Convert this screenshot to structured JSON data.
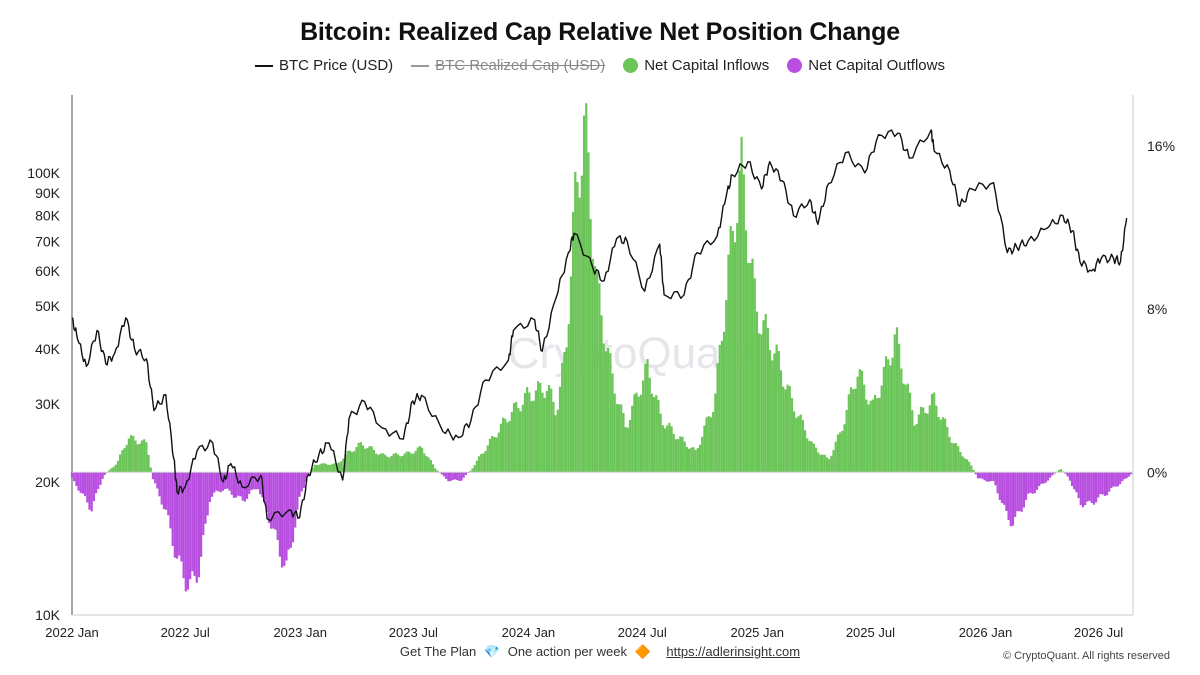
{
  "chart_data": {
    "type": "line+bar",
    "title": "Bitcoin: Realized Cap Relative Net Position Change",
    "legend": [
      {
        "label": "BTC Price (USD)",
        "marker": "line",
        "color": "#111111"
      },
      {
        "label": "BTC Realized Cap (USD)",
        "marker": "line-strikethrough",
        "color": "#999999"
      },
      {
        "label": "Net Capital Inflows",
        "marker": "dot",
        "color": "#6cc558"
      },
      {
        "label": "Net Capital Outflows",
        "marker": "dot",
        "color": "#b84fe0"
      }
    ],
    "legend_position": "top-center",
    "left_axis": {
      "scale": "log",
      "ylim": [
        10000,
        150000
      ],
      "ticks": [
        {
          "v": 10000,
          "label": "10K"
        },
        {
          "v": 20000,
          "label": "20K"
        },
        {
          "v": 30000,
          "label": "30K"
        },
        {
          "v": 40000,
          "label": "40K"
        },
        {
          "v": 50000,
          "label": "50K"
        },
        {
          "v": 60000,
          "label": "60K"
        },
        {
          "v": 70000,
          "label": "70K"
        },
        {
          "v": 80000,
          "label": "80K"
        },
        {
          "v": 90000,
          "label": "90K"
        },
        {
          "v": 100000,
          "label": "100K"
        }
      ]
    },
    "right_axis": {
      "unit": "percent",
      "ylim": [
        -7,
        18.5
      ],
      "ticks": [
        {
          "v": 0,
          "label": "0%"
        },
        {
          "v": 8,
          "label": "8%"
        },
        {
          "v": 16,
          "label": "16%"
        }
      ]
    },
    "x_axis": {
      "ticks": [
        {
          "date": "2022-01-01",
          "label": "2022 Jan"
        },
        {
          "date": "2022-07-01",
          "label": "2022 Jul"
        },
        {
          "date": "2023-01-01",
          "label": "2023 Jan"
        },
        {
          "date": "2023-07-01",
          "label": "2023 Jul"
        },
        {
          "date": "2024-01-01",
          "label": "2024 Jan"
        },
        {
          "date": "2024-07-01",
          "label": "2024 Jul"
        },
        {
          "date": "2025-01-01",
          "label": "2025 Jan"
        },
        {
          "date": "2025-07-01",
          "label": "2025 Jul"
        },
        {
          "date": "2026-01-01",
          "label": "2026 Jan"
        },
        {
          "date": "2026-07-01",
          "label": "2026 Jul"
        }
      ],
      "range": [
        "2022-01-01",
        "2026-08-25"
      ]
    },
    "grid": false,
    "watermark": "CryptoQuant",
    "series": [
      {
        "name": "BTC Price (USD)",
        "axis": "left",
        "points": [
          [
            "2022-01-01",
            47000
          ],
          [
            "2022-01-10",
            42000
          ],
          [
            "2022-01-24",
            36500
          ],
          [
            "2022-02-10",
            44000
          ],
          [
            "2022-02-24",
            37000
          ],
          [
            "2022-03-10",
            39000
          ],
          [
            "2022-03-28",
            47000
          ],
          [
            "2022-04-11",
            40000
          ],
          [
            "2022-04-30",
            38000
          ],
          [
            "2022-05-12",
            29000
          ],
          [
            "2022-05-31",
            31500
          ],
          [
            "2022-06-13",
            22500
          ],
          [
            "2022-06-18",
            19000
          ],
          [
            "2022-07-01",
            19500
          ],
          [
            "2022-07-20",
            23500
          ],
          [
            "2022-08-14",
            24500
          ],
          [
            "2022-08-31",
            20000
          ],
          [
            "2022-09-12",
            22000
          ],
          [
            "2022-09-30",
            19500
          ],
          [
            "2022-10-30",
            20700
          ],
          [
            "2022-11-09",
            16500
          ],
          [
            "2022-12-15",
            17300
          ],
          [
            "2022-12-31",
            16600
          ],
          [
            "2023-01-14",
            20800
          ],
          [
            "2023-01-31",
            23100
          ],
          [
            "2023-02-16",
            24500
          ],
          [
            "2023-03-10",
            20200
          ],
          [
            "2023-03-20",
            27800
          ],
          [
            "2023-04-14",
            30400
          ],
          [
            "2023-05-12",
            26500
          ],
          [
            "2023-06-15",
            25000
          ],
          [
            "2023-06-30",
            30500
          ],
          [
            "2023-07-14",
            31400
          ],
          [
            "2023-08-17",
            26000
          ],
          [
            "2023-09-11",
            25200
          ],
          [
            "2023-10-01",
            27500
          ],
          [
            "2023-10-24",
            34000
          ],
          [
            "2023-11-30",
            37700
          ],
          [
            "2023-12-08",
            44000
          ],
          [
            "2024-01-11",
            46500
          ],
          [
            "2024-01-23",
            39500
          ],
          [
            "2024-02-14",
            52000
          ],
          [
            "2024-03-05",
            66000
          ],
          [
            "2024-03-14",
            73000
          ],
          [
            "2024-04-13",
            61000
          ],
          [
            "2024-05-01",
            57000
          ],
          [
            "2024-05-21",
            71000
          ],
          [
            "2024-06-07",
            70000
          ],
          [
            "2024-07-05",
            54000
          ],
          [
            "2024-07-29",
            69000
          ],
          [
            "2024-08-05",
            53000
          ],
          [
            "2024-09-06",
            53000
          ],
          [
            "2024-09-27",
            66000
          ],
          [
            "2024-10-29",
            72000
          ],
          [
            "2024-11-12",
            88000
          ],
          [
            "2024-11-22",
            99000
          ],
          [
            "2024-12-17",
            106000
          ],
          [
            "2025-01-08",
            92000
          ],
          [
            "2025-01-21",
            106000
          ],
          [
            "2025-02-10",
            96000
          ],
          [
            "2025-02-28",
            80000
          ],
          [
            "2025-03-26",
            87000
          ],
          [
            "2025-04-08",
            76500
          ],
          [
            "2025-04-25",
            94500
          ],
          [
            "2025-05-22",
            111000
          ],
          [
            "2025-06-22",
            100000
          ],
          [
            "2025-07-14",
            122000
          ],
          [
            "2025-08-14",
            123000
          ],
          [
            "2025-09-01",
            108000
          ],
          [
            "2025-10-06",
            125000
          ],
          [
            "2025-10-11",
            112000
          ],
          [
            "2025-11-05",
            101000
          ],
          [
            "2025-11-21",
            84000
          ],
          [
            "2025-12-10",
            92000
          ],
          [
            "2026-01-14",
            95000
          ],
          [
            "2026-02-05",
            66000
          ],
          [
            "2026-02-20",
            68000
          ],
          [
            "2026-03-10",
            70000
          ],
          [
            "2026-04-10",
            75000
          ],
          [
            "2026-05-05",
            80000
          ],
          [
            "2026-05-20",
            74000
          ],
          [
            "2026-06-01",
            63000
          ],
          [
            "2026-06-20",
            60000
          ],
          [
            "2026-07-05",
            64000
          ],
          [
            "2026-07-25",
            64000
          ],
          [
            "2026-08-05",
            63000
          ],
          [
            "2026-08-15",
            79000
          ]
        ]
      },
      {
        "name": "Net Capital Inflows / Outflows (%)",
        "axis": "right",
        "points": [
          [
            "2022-01-01",
            -0.3
          ],
          [
            "2022-02-01",
            -1.8
          ],
          [
            "2022-02-20",
            -0.2
          ],
          [
            "2022-03-15",
            0.5
          ],
          [
            "2022-04-01",
            1.7
          ],
          [
            "2022-05-01",
            1.4
          ],
          [
            "2022-05-10",
            -0.3
          ],
          [
            "2022-06-01",
            -2.0
          ],
          [
            "2022-06-20",
            -4.5
          ],
          [
            "2022-07-10",
            -5.7
          ],
          [
            "2022-07-25",
            -4.5
          ],
          [
            "2022-08-10",
            -1.2
          ],
          [
            "2022-09-01",
            -0.8
          ],
          [
            "2022-10-01",
            -1.4
          ],
          [
            "2022-10-25",
            -0.7
          ],
          [
            "2022-11-15",
            -2.5
          ],
          [
            "2022-12-01",
            -4.0
          ],
          [
            "2022-12-10",
            -4.8
          ],
          [
            "2023-01-01",
            -1.2
          ],
          [
            "2023-01-12",
            -0.3
          ],
          [
            "2023-01-25",
            0.4
          ],
          [
            "2023-03-01",
            0.4
          ],
          [
            "2023-03-20",
            1.0
          ],
          [
            "2023-04-10",
            1.4
          ],
          [
            "2023-05-15",
            0.8
          ],
          [
            "2023-06-20",
            0.9
          ],
          [
            "2023-07-15",
            1.2
          ],
          [
            "2023-08-05",
            0.2
          ],
          [
            "2023-08-25",
            -0.4
          ],
          [
            "2023-09-15",
            -0.4
          ],
          [
            "2023-10-01",
            0.1
          ],
          [
            "2023-10-25",
            1.2
          ],
          [
            "2023-12-01",
            2.8
          ],
          [
            "2024-01-01",
            3.8
          ],
          [
            "2024-01-31",
            4.2
          ],
          [
            "2024-02-15",
            3.0
          ],
          [
            "2024-03-01",
            6.0
          ],
          [
            "2024-03-15",
            13.0
          ],
          [
            "2024-03-31",
            17.2
          ],
          [
            "2024-04-20",
            9.0
          ],
          [
            "2024-05-15",
            4.5
          ],
          [
            "2024-06-05",
            2.2
          ],
          [
            "2024-06-25",
            4.0
          ],
          [
            "2024-07-10",
            5.1
          ],
          [
            "2024-08-01",
            2.6
          ],
          [
            "2024-08-25",
            1.8
          ],
          [
            "2024-09-25",
            1.0
          ],
          [
            "2024-10-25",
            3.5
          ],
          [
            "2024-11-20",
            11.0
          ],
          [
            "2024-12-06",
            15.0
          ],
          [
            "2024-12-30",
            8.0
          ],
          [
            "2025-01-31",
            5.8
          ],
          [
            "2025-02-25",
            3.5
          ],
          [
            "2025-03-31",
            1.3
          ],
          [
            "2025-04-25",
            0.6
          ],
          [
            "2025-05-15",
            2.0
          ],
          [
            "2025-06-10",
            5.0
          ],
          [
            "2025-07-05",
            3.2
          ],
          [
            "2025-07-25",
            5.0
          ],
          [
            "2025-08-10",
            6.7
          ],
          [
            "2025-09-10",
            2.5
          ],
          [
            "2025-10-10",
            3.6
          ],
          [
            "2025-11-10",
            1.5
          ],
          [
            "2025-12-10",
            0.3
          ],
          [
            "2025-12-20",
            -0.3
          ],
          [
            "2026-01-15",
            -0.5
          ],
          [
            "2026-02-05",
            -2.2
          ],
          [
            "2026-02-15",
            -2.5
          ],
          [
            "2026-03-10",
            -1.2
          ],
          [
            "2026-04-10",
            -0.4
          ],
          [
            "2026-05-01",
            0.2
          ],
          [
            "2026-05-15",
            -0.3
          ],
          [
            "2026-06-01",
            -1.5
          ],
          [
            "2026-06-15",
            -1.6
          ],
          [
            "2026-07-15",
            -1.0
          ],
          [
            "2026-08-15",
            -0.3
          ],
          [
            "2026-08-25",
            0.0
          ]
        ]
      }
    ]
  },
  "footer": {
    "promo_text": "Get The Plan",
    "promo_icon_1": "💎",
    "promo_middle": "One action per week",
    "promo_icon_2": "🔶",
    "promo_link": "https://adlerinsight.com",
    "copyright": "© CryptoQuant. All rights reserved"
  }
}
